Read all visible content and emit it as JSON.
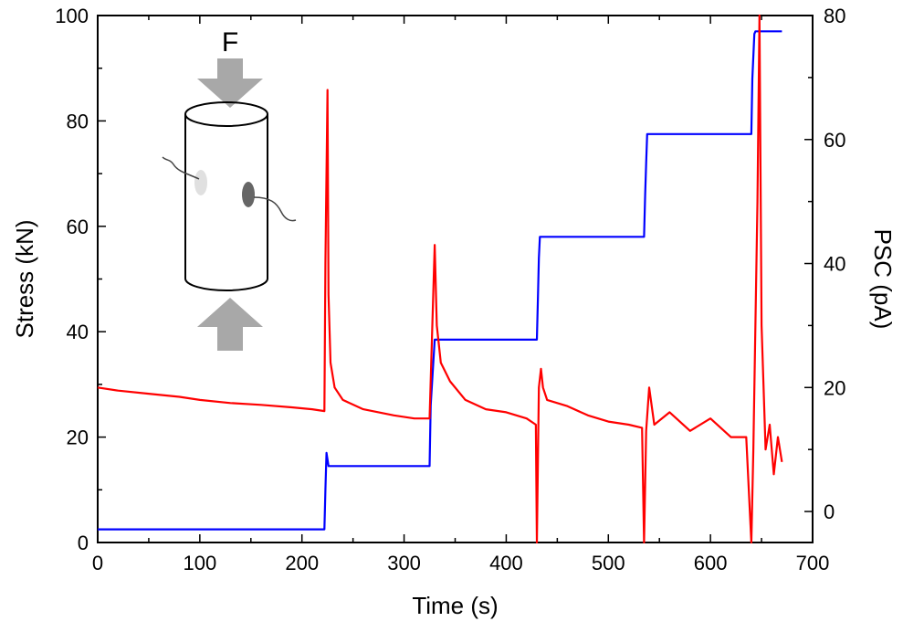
{
  "chart_data": {
    "type": "line",
    "title": "",
    "xlabel": "Time (s)",
    "ylabel": "Stress (kN)",
    "y2label": "PSC (pA)",
    "xlim": [
      0,
      700
    ],
    "ylim": [
      0,
      100
    ],
    "y2lim": [
      -5,
      80
    ],
    "xticks": [
      0,
      100,
      200,
      300,
      400,
      500,
      600,
      700
    ],
    "yticks": [
      0,
      20,
      40,
      60,
      80,
      100
    ],
    "y2ticks": [
      0,
      20,
      40,
      60,
      80
    ],
    "grid": false,
    "series": [
      {
        "name": "Stress",
        "axis": "left",
        "color": "#0000ff",
        "x": [
          0,
          222,
          223,
          224,
          226,
          235,
          325,
          326,
          330,
          430,
          431,
          432,
          433,
          535,
          536,
          537,
          538,
          640,
          641,
          643,
          644,
          670
        ],
        "y": [
          2.5,
          2.5,
          10,
          17,
          14.5,
          14.5,
          14.5,
          26,
          38.5,
          38.5,
          46,
          54,
          58,
          58,
          66,
          72,
          77.5,
          77.5,
          88,
          96.5,
          97,
          97
        ]
      },
      {
        "name": "PSC",
        "axis": "right",
        "color": "#ff0000",
        "x": [
          0,
          20,
          50,
          80,
          100,
          130,
          160,
          190,
          210,
          222,
          223,
          225,
          226,
          228,
          232,
          240,
          260,
          290,
          310,
          325,
          328,
          330,
          332,
          336,
          345,
          360,
          380,
          400,
          420,
          429,
          430,
          432,
          434,
          436,
          440,
          460,
          480,
          500,
          520,
          533,
          535,
          537,
          540,
          545,
          560,
          580,
          600,
          620,
          635,
          640,
          642,
          646,
          648,
          650,
          654,
          658,
          662,
          666,
          670
        ],
        "y": [
          20,
          19.5,
          19,
          18.5,
          18,
          17.5,
          17.2,
          16.8,
          16.5,
          16.2,
          40,
          68,
          35,
          24,
          20,
          18,
          16.5,
          15.5,
          15,
          15,
          32,
          43,
          30,
          24,
          21,
          18,
          16.5,
          16,
          15,
          14,
          -5,
          20,
          23,
          20,
          18,
          17,
          15.5,
          14.5,
          14,
          13.5,
          -5,
          13,
          20,
          14,
          16,
          13,
          15,
          12,
          12,
          -5,
          10,
          50,
          80,
          30,
          10,
          14,
          6,
          12,
          8
        ]
      }
    ]
  },
  "inset": {
    "force_label": "F"
  }
}
